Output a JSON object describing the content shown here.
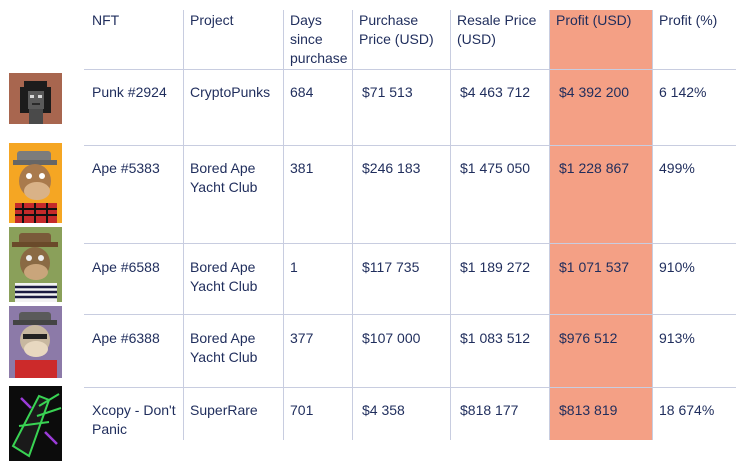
{
  "headers": {
    "nft": "NFT",
    "project": "Project",
    "days": "Days\nsince\npurchase",
    "purchase": "Purchase\nPrice (USD)",
    "resale": "Resale Price\n(USD)",
    "profit_usd": "Profit (USD)",
    "profit_pct": "Profit (%)"
  },
  "rows": [
    {
      "nft": "Punk #2924",
      "project": "CryptoPunks",
      "days": "684",
      "purchase": "$71 513",
      "resale": "$4 463 712",
      "profit_usd": "$4 392 200",
      "profit_pct": "6 142%",
      "thumb_icon": "cryptopunk-avatar"
    },
    {
      "nft": "Ape #5383",
      "project": "Bored Ape\nYacht Club",
      "days": "381",
      "purchase": "$246 183",
      "resale": "$1 475 050",
      "profit_usd": "$1 228 867",
      "profit_pct": "499%",
      "thumb_icon": "bored-ape-avatar"
    },
    {
      "nft": "Ape #6588",
      "project": "Bored Ape\nYacht Club",
      "days": "1",
      "purchase": "$117 735",
      "resale": "$1 189 272",
      "profit_usd": "$1 071 537",
      "profit_pct": "910%",
      "thumb_icon": "bored-ape-avatar"
    },
    {
      "nft": "Ape #6388",
      "project": "Bored Ape\nYacht Club",
      "days": "377",
      "purchase": "$107 000",
      "resale": "$1 083 512",
      "profit_usd": "$976 512",
      "profit_pct": "913%",
      "thumb_icon": "bored-ape-avatar"
    },
    {
      "nft": "Xcopy - Don't\nPanic",
      "project": "SuperRare",
      "days": "701",
      "purchase": "$4 358",
      "resale": "$818 177",
      "profit_usd": "$813 819",
      "profit_pct": "18 674%",
      "thumb_icon": "xcopy-artwork"
    }
  ],
  "colors": {
    "highlight": "#f4a085",
    "text": "#1f2d5c",
    "rule": "#c8cde0"
  }
}
